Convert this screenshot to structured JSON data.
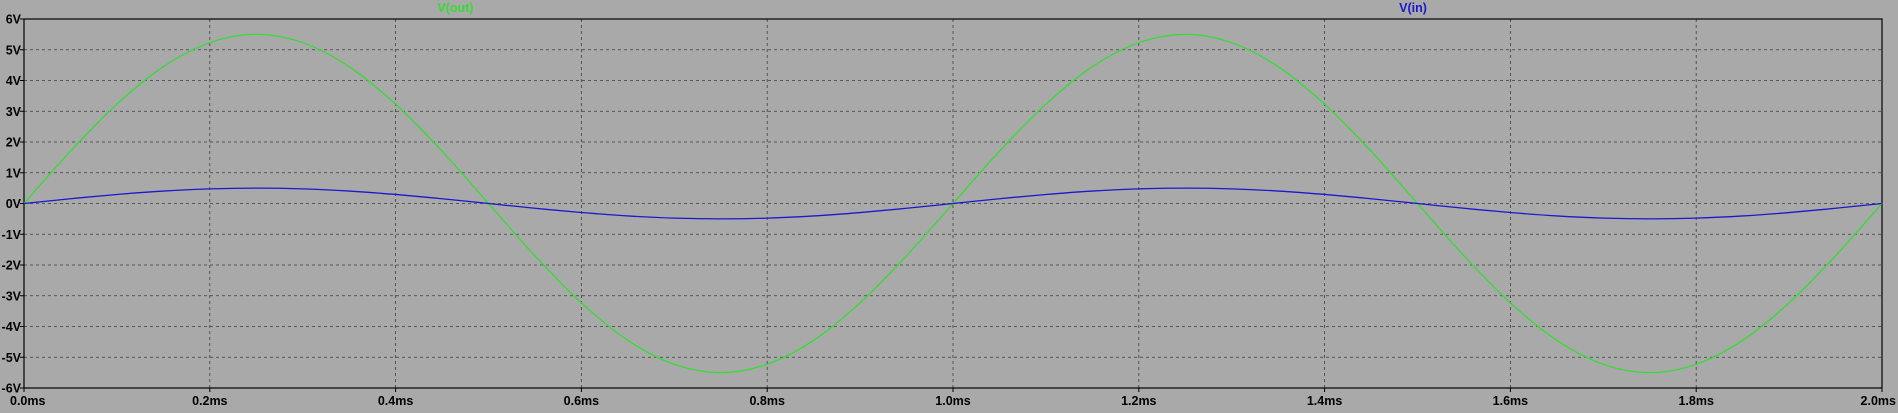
{
  "chart_data": {
    "type": "line",
    "x_unit": "ms",
    "y_unit": "V",
    "xlim": [
      0.0,
      2.0
    ],
    "ylim": [
      -6,
      6
    ],
    "x_ticks": [
      "0.0ms",
      "0.2ms",
      "0.4ms",
      "0.6ms",
      "0.8ms",
      "1.0ms",
      "1.2ms",
      "1.4ms",
      "1.6ms",
      "1.8ms",
      "2.0ms"
    ],
    "y_ticks": [
      "6V",
      "5V",
      "4V",
      "3V",
      "2V",
      "1V",
      "0V",
      "-1V",
      "-2V",
      "-3V",
      "-4V",
      "-5V",
      "-6V"
    ],
    "grid": true,
    "grid_style": "dashed",
    "background": "#a9a9a9",
    "series": [
      {
        "name": "V(out)",
        "color": "#33dd33",
        "x": [
          0.0,
          0.05,
          0.1,
          0.15,
          0.2,
          0.25,
          0.3,
          0.35,
          0.4,
          0.45,
          0.5,
          0.55,
          0.6,
          0.65,
          0.7,
          0.75,
          0.8,
          0.85,
          0.9,
          0.95,
          1.0,
          1.05,
          1.1,
          1.15,
          1.2,
          1.25,
          1.3,
          1.35,
          1.4,
          1.45,
          1.5,
          1.55,
          1.6,
          1.65,
          1.7,
          1.75,
          1.8,
          1.85,
          1.9,
          1.95,
          2.0
        ],
        "values": [
          0,
          1.7,
          3.23,
          4.45,
          5.23,
          5.5,
          5.23,
          4.45,
          3.23,
          1.7,
          0,
          -1.7,
          -3.23,
          -4.45,
          -5.23,
          -5.5,
          -5.23,
          -4.45,
          -3.23,
          -1.7,
          0,
          1.7,
          3.23,
          4.45,
          5.23,
          5.5,
          5.23,
          4.45,
          3.23,
          1.7,
          0,
          -1.7,
          -3.23,
          -4.45,
          -5.23,
          -5.5,
          -5.23,
          -4.45,
          -3.23,
          -1.7,
          0
        ]
      },
      {
        "name": "V(in)",
        "color": "#1a1acc",
        "x": [
          0.0,
          0.05,
          0.1,
          0.15,
          0.2,
          0.25,
          0.3,
          0.35,
          0.4,
          0.45,
          0.5,
          0.55,
          0.6,
          0.65,
          0.7,
          0.75,
          0.8,
          0.85,
          0.9,
          0.95,
          1.0,
          1.05,
          1.1,
          1.15,
          1.2,
          1.25,
          1.3,
          1.35,
          1.4,
          1.45,
          1.5,
          1.55,
          1.6,
          1.65,
          1.7,
          1.75,
          1.8,
          1.85,
          1.9,
          1.95,
          2.0
        ],
        "values": [
          0,
          0.155,
          0.294,
          0.405,
          0.476,
          0.5,
          0.476,
          0.405,
          0.294,
          0.155,
          0,
          -0.155,
          -0.294,
          -0.405,
          -0.476,
          -0.5,
          -0.476,
          -0.405,
          -0.294,
          -0.155,
          0,
          0.155,
          0.294,
          0.405,
          0.476,
          0.5,
          0.476,
          0.405,
          0.294,
          0.155,
          0,
          -0.155,
          -0.294,
          -0.405,
          -0.476,
          -0.5,
          -0.476,
          -0.405,
          -0.294,
          -0.155,
          0
        ]
      }
    ]
  }
}
